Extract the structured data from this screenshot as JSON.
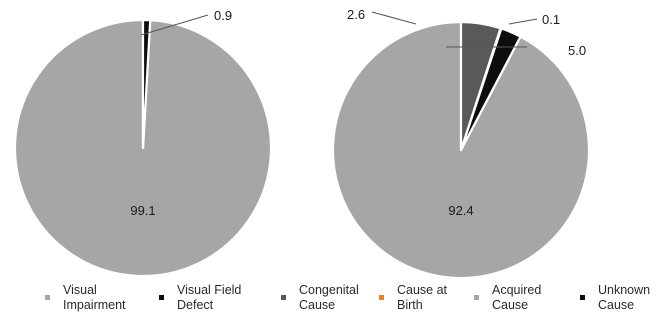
{
  "chart_data": [
    {
      "type": "pie",
      "slices": [
        {
          "name": "Visual Impairment",
          "value": 99.1,
          "color": "#a6a6a6",
          "label": "99.1"
        },
        {
          "name": "Visual Field Defect",
          "value": 0.9,
          "color": "#0d0d0d",
          "label": "0.9"
        }
      ]
    },
    {
      "type": "pie",
      "slices": [
        {
          "name": "Acquired Cause",
          "value": 92.4,
          "color": "#a6a6a6",
          "label": "92.4"
        },
        {
          "name": "Unknown Cause",
          "value": 2.6,
          "color": "#0d0d0d",
          "label": "2.6"
        },
        {
          "name": "Cause at Birth",
          "value": 0.1,
          "color": "#ed7d31",
          "label": "0.1"
        },
        {
          "name": "Congenital Cause",
          "value": 5.0,
          "color": "#595959",
          "label": "5.0"
        }
      ]
    }
  ],
  "legend": [
    {
      "label": "Visual\nImpairment",
      "color": "#a6a6a6"
    },
    {
      "label": "Visual Field\nDefect",
      "color": "#0d0d0d"
    },
    {
      "label": "Congenital\nCause",
      "color": "#595959"
    },
    {
      "label": "Cause at\nBirth",
      "color": "#ed7d31"
    },
    {
      "label": "Acquired\nCause",
      "color": "#a6a6a6"
    },
    {
      "label": "Unknown\nCause",
      "color": "#0d0d0d"
    }
  ]
}
